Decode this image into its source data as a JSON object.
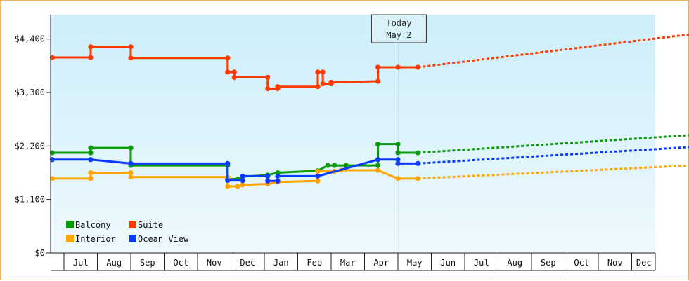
{
  "chart_data": {
    "type": "line",
    "title": "",
    "xlabel": "",
    "ylabel": "",
    "ylim": [
      0,
      4900
    ],
    "yticks": [
      0,
      1100,
      2200,
      3300,
      4400
    ],
    "ytick_labels": [
      "$0",
      "$1,100",
      "$2,200",
      "$3,300",
      "$4,400"
    ],
    "month_labels": [
      "Jul",
      "Aug",
      "Sep",
      "Oct",
      "Nov",
      "Dec",
      "Jan",
      "Feb",
      "Mar",
      "Apr",
      "May",
      "Jun",
      "Jul",
      "Aug",
      "Sep",
      "Oct",
      "Nov",
      "Dec"
    ],
    "today_marker": {
      "line1": "Today",
      "line2": "May 2",
      "x": 10.03
    },
    "grid": false,
    "legend_position": "bottom-left",
    "series": [
      {
        "name": "Balcony",
        "color": "#0a9a0a",
        "points": [
          [
            -0.35,
            2060
          ],
          [
            0.8,
            2060
          ],
          [
            0.8,
            2160
          ],
          [
            2.0,
            2160
          ],
          [
            2.0,
            1800
          ],
          [
            4.9,
            1800
          ],
          [
            4.9,
            1520
          ],
          [
            5.2,
            1520
          ],
          [
            5.35,
            1570
          ],
          [
            6.1,
            1600
          ],
          [
            6.4,
            1650
          ],
          [
            7.6,
            1690
          ],
          [
            7.9,
            1800
          ],
          [
            8.1,
            1800
          ],
          [
            8.45,
            1800
          ],
          [
            9.4,
            1800
          ],
          [
            9.4,
            2240
          ],
          [
            10.0,
            2240
          ],
          [
            10.0,
            2060
          ],
          [
            10.6,
            2060
          ]
        ],
        "forecast": [
          [
            10.6,
            2060
          ],
          [
            20.0,
            2480
          ]
        ]
      },
      {
        "name": "Suite",
        "color": "#ff3a00",
        "points": [
          [
            -0.35,
            4020
          ],
          [
            0.8,
            4020
          ],
          [
            0.8,
            4240
          ],
          [
            2.0,
            4240
          ],
          [
            2.0,
            4010
          ],
          [
            4.9,
            4010
          ],
          [
            4.9,
            3720
          ],
          [
            5.1,
            3720
          ],
          [
            5.1,
            3610
          ],
          [
            6.1,
            3610
          ],
          [
            6.1,
            3380
          ],
          [
            6.4,
            3380
          ],
          [
            6.4,
            3420
          ],
          [
            7.6,
            3420
          ],
          [
            7.6,
            3720
          ],
          [
            7.75,
            3720
          ],
          [
            7.75,
            3480
          ],
          [
            8.0,
            3480
          ],
          [
            8.0,
            3510
          ],
          [
            9.4,
            3530
          ],
          [
            9.4,
            3820
          ],
          [
            10.0,
            3820
          ],
          [
            10.6,
            3820
          ]
        ],
        "forecast": [
          [
            10.6,
            3820
          ],
          [
            20.0,
            4600
          ]
        ]
      },
      {
        "name": "Interior",
        "color": "#ffa500",
        "points": [
          [
            -0.35,
            1530
          ],
          [
            0.8,
            1530
          ],
          [
            0.8,
            1650
          ],
          [
            2.0,
            1650
          ],
          [
            2.0,
            1560
          ],
          [
            4.9,
            1560
          ],
          [
            4.9,
            1370
          ],
          [
            5.2,
            1370
          ],
          [
            5.2,
            1370
          ],
          [
            5.35,
            1400
          ],
          [
            6.1,
            1420
          ],
          [
            6.4,
            1460
          ],
          [
            7.6,
            1480
          ],
          [
            7.6,
            1680
          ],
          [
            8.1,
            1680
          ],
          [
            8.3,
            1700
          ],
          [
            9.4,
            1700
          ],
          [
            10.0,
            1530
          ],
          [
            10.6,
            1530
          ]
        ],
        "forecast": [
          [
            10.6,
            1530
          ],
          [
            20.0,
            1840
          ]
        ]
      },
      {
        "name": "Ocean View",
        "color": "#0a3aff",
        "points": [
          [
            -0.35,
            1920
          ],
          [
            0.8,
            1920
          ],
          [
            2.0,
            1840
          ],
          [
            4.9,
            1840
          ],
          [
            4.9,
            1490
          ],
          [
            5.35,
            1490
          ],
          [
            5.35,
            1580
          ],
          [
            6.1,
            1580
          ],
          [
            6.1,
            1480
          ],
          [
            6.4,
            1480
          ],
          [
            6.4,
            1580
          ],
          [
            7.6,
            1580
          ],
          [
            9.4,
            1920
          ],
          [
            10.0,
            1920
          ],
          [
            10.0,
            1840
          ],
          [
            10.6,
            1840
          ]
        ],
        "forecast": [
          [
            10.6,
            1840
          ],
          [
            20.0,
            2230
          ]
        ]
      }
    ]
  }
}
